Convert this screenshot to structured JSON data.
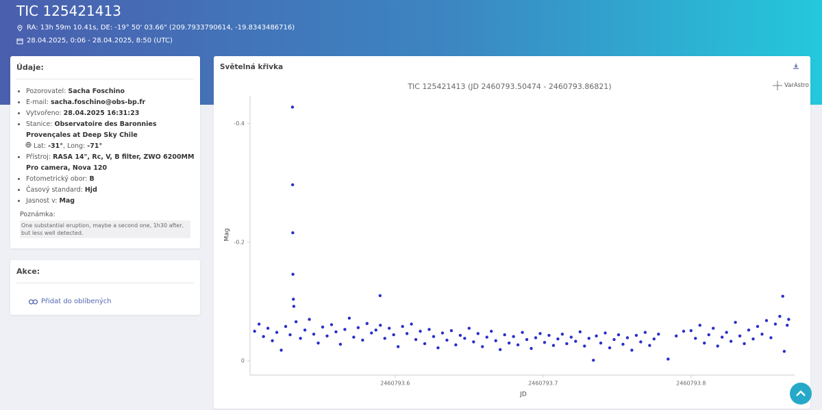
{
  "header": {
    "title": "TIC 125421413",
    "coordinates": "RA: 13h 59m 10.41s, DE: -19° 50' 03.66\" (209.7933790614, -19.8343486716)",
    "time_range": "28.04.2025, 0:06 - 28.04.2025, 8:50 (UTC)"
  },
  "details": {
    "title": "Údaje:",
    "items": [
      {
        "label": "Pozorovatel:",
        "value": "Sacha Foschino"
      },
      {
        "label": "E-mail:",
        "value": "sacha.foschino@obs-bp.fr"
      },
      {
        "label": "Vytvořeno:",
        "value": "28.04.2025 16:31:23"
      },
      {
        "label": "Stanice:",
        "value": "Observatoire des Baronnies Provençales at Deep Sky Chile"
      },
      {
        "label": "Přístroj:",
        "value": "RASA 14\", Rc, V, B filter, ZWO 6200MM Pro camera, Nova 120"
      },
      {
        "label": "Fotometrický obor:",
        "value": "B"
      },
      {
        "label": "Časový standard:",
        "value": "Hjd"
      },
      {
        "label": "Jasnost v:",
        "value": "Mag"
      }
    ],
    "location": {
      "lat_label": "Lat:",
      "lat": "-31°",
      "long_label": ", Long:",
      "long": "-71°"
    },
    "note_label": "Poznámka:",
    "note": "One substantial eruption, maybe a second one, 1h30 after, but less well detected."
  },
  "actions": {
    "title": "Akce:",
    "favorite": "Přidat do oblíbených"
  },
  "panel": {
    "title": "Světelná křivka",
    "logo": "VarAstro"
  },
  "chart_data": {
    "type": "scatter",
    "title": "TIC 125421413 (JD 2460793.50474 - 2460793.86821)",
    "x_label": "JD",
    "y_label": "Mag",
    "color": "#2a2fc8",
    "xlim": [
      2460793.5019,
      2460793.87
    ],
    "xticks": [
      2460793.6,
      2460793.7,
      2460793.8
    ],
    "ylim": [
      0.024,
      -0.447
    ],
    "yticks": [
      -0.4,
      -0.2,
      0
    ],
    "grid": false,
    "x": [
      2460793.505,
      2460793.508,
      2460793.511,
      2460793.514,
      2460793.517,
      2460793.52,
      2460793.523,
      2460793.526,
      2460793.529,
      2460793.5306,
      2460793.5307,
      2460793.5308,
      2460793.5309,
      2460793.5312,
      2460793.5315,
      2460793.533,
      2460793.536,
      2460793.539,
      2460793.542,
      2460793.545,
      2460793.548,
      2460793.551,
      2460793.554,
      2460793.557,
      2460793.56,
      2460793.563,
      2460793.566,
      2460793.569,
      2460793.572,
      2460793.575,
      2460793.578,
      2460793.581,
      2460793.584,
      2460793.587,
      2460793.5898,
      2460793.59,
      2460793.593,
      2460793.596,
      2460793.599,
      2460793.602,
      2460793.605,
      2460793.608,
      2460793.611,
      2460793.614,
      2460793.617,
      2460793.62,
      2460793.623,
      2460793.626,
      2460793.629,
      2460793.632,
      2460793.635,
      2460793.638,
      2460793.641,
      2460793.644,
      2460793.647,
      2460793.65,
      2460793.653,
      2460793.656,
      2460793.659,
      2460793.662,
      2460793.665,
      2460793.668,
      2460793.671,
      2460793.674,
      2460793.677,
      2460793.68,
      2460793.683,
      2460793.686,
      2460793.689,
      2460793.692,
      2460793.695,
      2460793.698,
      2460793.701,
      2460793.704,
      2460793.707,
      2460793.71,
      2460793.713,
      2460793.716,
      2460793.719,
      2460793.722,
      2460793.725,
      2460793.728,
      2460793.731,
      2460793.734,
      2460793.736,
      2460793.739,
      2460793.742,
      2460793.745,
      2460793.748,
      2460793.751,
      2460793.754,
      2460793.757,
      2460793.76,
      2460793.763,
      2460793.766,
      2460793.769,
      2460793.772,
      2460793.775,
      2460793.778,
      2460793.7845,
      2460793.79,
      2460793.795,
      2460793.8,
      2460793.803,
      2460793.806,
      2460793.809,
      2460793.812,
      2460793.815,
      2460793.818,
      2460793.821,
      2460793.824,
      2460793.827,
      2460793.83,
      2460793.833,
      2460793.836,
      2460793.839,
      2460793.842,
      2460793.845,
      2460793.848,
      2460793.851,
      2460793.854,
      2460793.857,
      2460793.86,
      2460793.862,
      2460793.863,
      2460793.865,
      2460793.866
    ],
    "values": [
      -0.05,
      -0.062,
      -0.041,
      -0.055,
      -0.034,
      -0.048,
      -0.018,
      -0.058,
      -0.044,
      -0.428,
      -0.297,
      -0.216,
      -0.146,
      -0.104,
      -0.092,
      -0.066,
      -0.038,
      -0.052,
      -0.07,
      -0.045,
      -0.03,
      -0.057,
      -0.042,
      -0.061,
      -0.049,
      -0.028,
      -0.053,
      -0.072,
      -0.04,
      -0.056,
      -0.035,
      -0.063,
      -0.047,
      -0.052,
      -0.11,
      -0.06,
      -0.038,
      -0.055,
      -0.044,
      -0.024,
      -0.058,
      -0.046,
      -0.062,
      -0.036,
      -0.05,
      -0.029,
      -0.053,
      -0.041,
      -0.022,
      -0.047,
      -0.035,
      -0.051,
      -0.027,
      -0.043,
      -0.038,
      -0.055,
      -0.032,
      -0.046,
      -0.024,
      -0.04,
      -0.05,
      -0.034,
      -0.019,
      -0.044,
      -0.03,
      -0.041,
      -0.027,
      -0.048,
      -0.036,
      -0.021,
      -0.039,
      -0.046,
      -0.031,
      -0.043,
      -0.026,
      -0.037,
      -0.045,
      -0.029,
      -0.04,
      -0.033,
      -0.049,
      -0.025,
      -0.038,
      -0.001,
      -0.042,
      -0.03,
      -0.047,
      -0.022,
      -0.036,
      -0.044,
      -0.028,
      -0.039,
      -0.018,
      -0.043,
      -0.032,
      -0.048,
      -0.026,
      -0.037,
      -0.045,
      -0.003,
      -0.042,
      -0.05,
      -0.051,
      -0.038,
      -0.06,
      -0.03,
      -0.044,
      -0.055,
      -0.025,
      -0.04,
      -0.048,
      -0.033,
      -0.065,
      -0.042,
      -0.029,
      -0.052,
      -0.037,
      -0.058,
      -0.045,
      -0.068,
      -0.039,
      -0.062,
      -0.075,
      -0.109,
      -0.016,
      -0.06,
      -0.07
    ]
  }
}
